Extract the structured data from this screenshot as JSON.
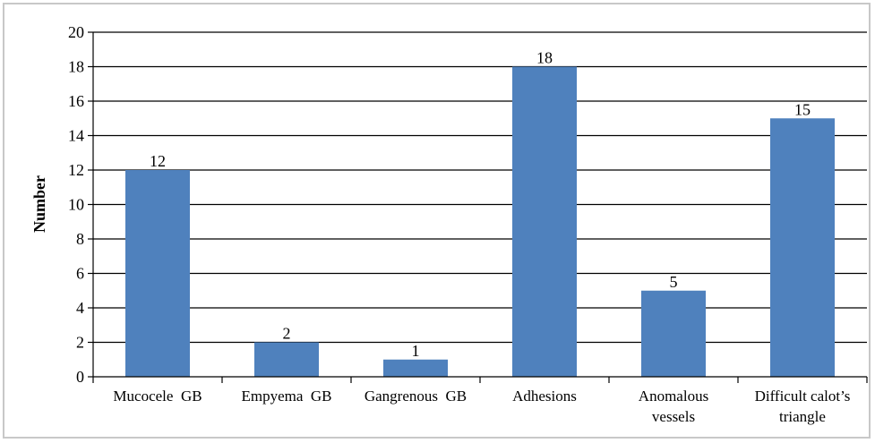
{
  "chart_data": {
    "type": "bar",
    "categories": [
      [
        "Mucocele  GB"
      ],
      [
        "Empyema  GB"
      ],
      [
        "Gangrenous  GB"
      ],
      [
        "Adhesions"
      ],
      [
        "Anomalous",
        "vessels"
      ],
      [
        "Difficult calot’s",
        "triangle"
      ]
    ],
    "values": [
      12,
      2,
      1,
      18,
      5,
      15
    ],
    "title": "",
    "xlabel": "",
    "ylabel": "Number",
    "ylim": [
      0,
      20
    ],
    "yticks": [
      0,
      2,
      4,
      6,
      8,
      10,
      12,
      14,
      16,
      18,
      20
    ],
    "grid": true,
    "bar_color": "#4f81bd",
    "legend": "none"
  }
}
